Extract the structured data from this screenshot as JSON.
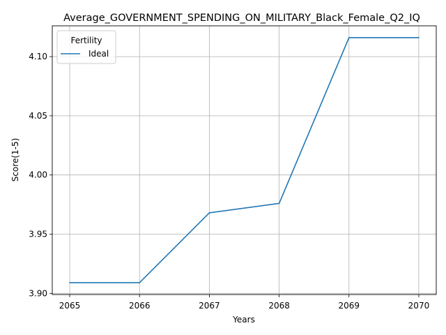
{
  "chart_data": {
    "type": "line",
    "title": "Average_GOVERNMENT_SPENDING_ON_MILITARY_Black_Female_Q2_IQ",
    "xlabel": "Years",
    "ylabel": "Score(1-5)",
    "x": [
      2065,
      2066,
      2067,
      2068,
      2069,
      2070
    ],
    "xticks": [
      "2065",
      "2066",
      "2067",
      "2068",
      "2069",
      "2070"
    ],
    "yticks": [
      "3.90",
      "3.95",
      "4.00",
      "4.05",
      "4.10"
    ],
    "ytick_values": [
      3.9,
      3.95,
      4.0,
      4.05,
      4.1
    ],
    "xlim": [
      2064.75,
      2070.25
    ],
    "ylim": [
      3.899,
      4.126
    ],
    "grid": true,
    "legend": {
      "title": "Fertility",
      "placement": "top-left"
    },
    "series": [
      {
        "name": "Ideal",
        "color": "#1f77b4",
        "values": [
          3.909,
          3.909,
          3.968,
          3.976,
          4.116,
          4.116
        ]
      }
    ]
  }
}
